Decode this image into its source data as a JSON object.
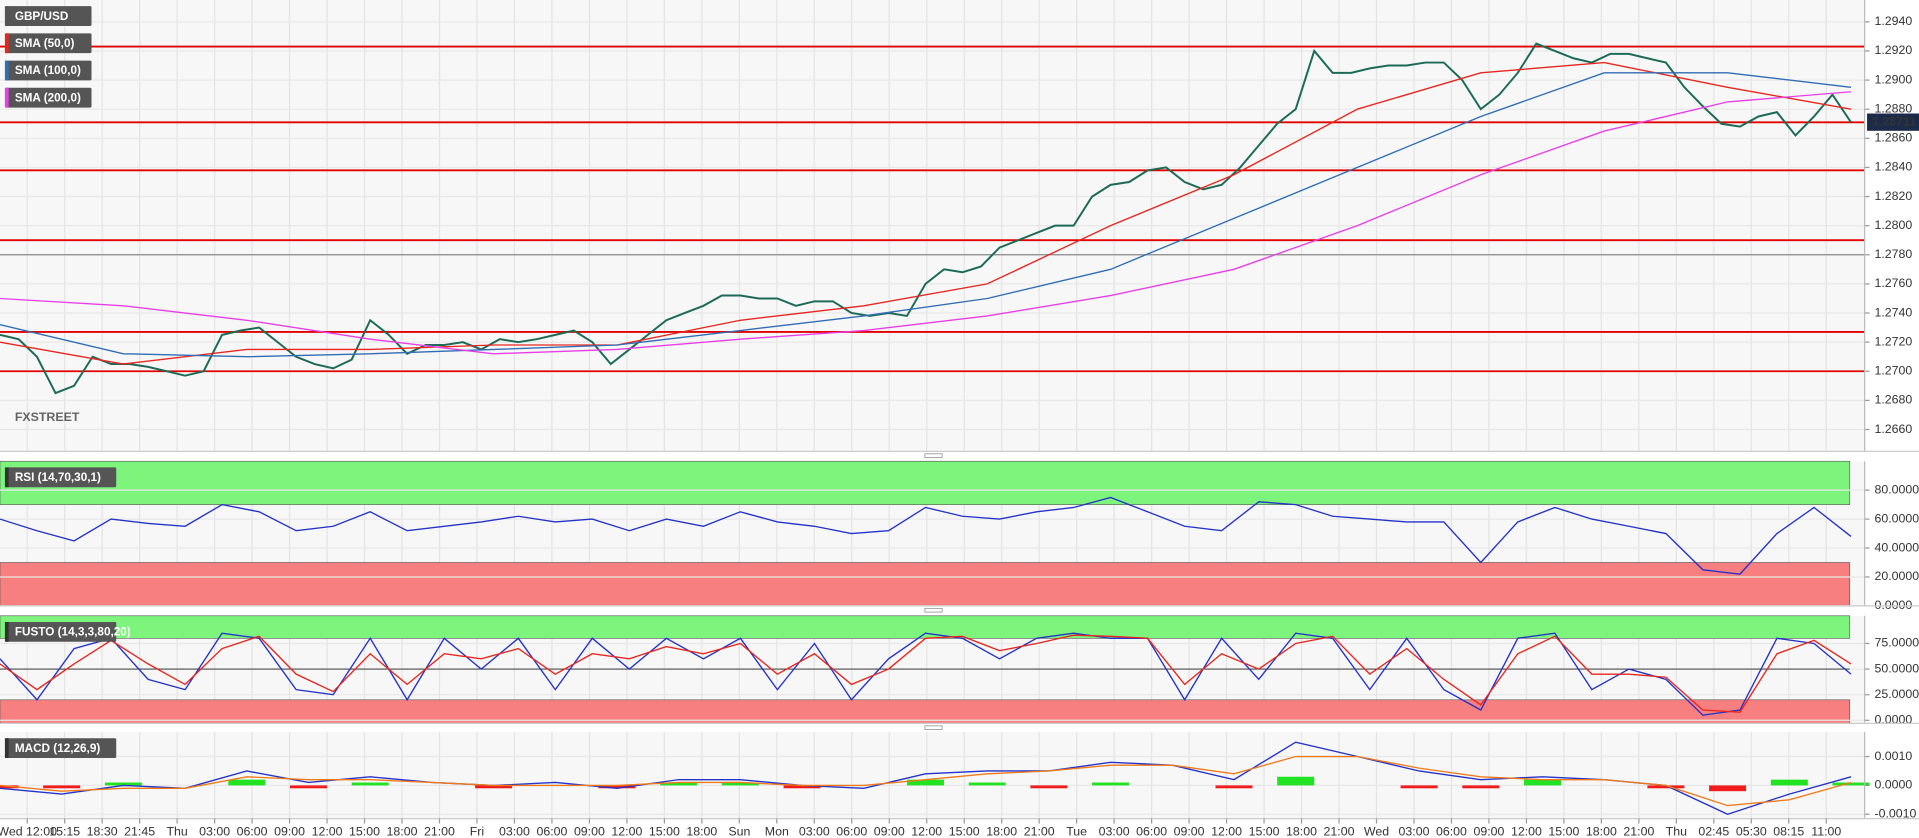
{
  "chart_data": [
    {
      "type": "line",
      "series": [
        {
          "name": "GBP/USD",
          "color": "#1d6b57",
          "values": [
            1.2725,
            1.2722,
            1.271,
            1.2685,
            1.269,
            1.271,
            1.2705,
            1.2705,
            1.2703,
            1.27,
            1.2697,
            1.27,
            1.2725,
            1.2728,
            1.273,
            1.272,
            1.271,
            1.2705,
            1.2702,
            1.2708,
            1.2735,
            1.2725,
            1.2712,
            1.2718,
            1.2718,
            1.272,
            1.2715,
            1.2722,
            1.272,
            1.2722,
            1.2725,
            1.2728,
            1.272,
            1.2705,
            1.2715,
            1.2725,
            1.2735,
            1.274,
            1.2745,
            1.2752,
            1.2752,
            1.275,
            1.275,
            1.2745,
            1.2748,
            1.2748,
            1.274,
            1.2738,
            1.274,
            1.2738,
            1.276,
            1.277,
            1.2768,
            1.2772,
            1.2785,
            1.279,
            1.2795,
            1.28,
            1.28,
            1.282,
            1.2828,
            1.283,
            1.2838,
            1.284,
            1.283,
            1.2825,
            1.2828,
            1.284,
            1.2855,
            1.287,
            1.288,
            1.292,
            1.2905,
            1.2905,
            1.2908,
            1.291,
            1.291,
            1.2912,
            1.2912,
            1.29,
            1.288,
            1.289,
            1.2905,
            1.2925,
            1.292,
            1.2915,
            1.2912,
            1.2918,
            1.2918,
            1.2915,
            1.2912,
            1.2895,
            1.2882,
            1.287,
            1.2868,
            1.2875,
            1.2878,
            1.2862,
            1.2875,
            1.289,
            1.2871
          ]
        },
        {
          "name": "SMA (50,0)",
          "color": "#e8261e",
          "values": [
            1.272,
            1.2705,
            1.2715,
            1.2715,
            1.2718,
            1.2718,
            1.2735,
            1.2745,
            1.276,
            1.28,
            1.2835,
            1.288,
            1.2905,
            1.2912,
            1.2895,
            1.288
          ]
        },
        {
          "name": "SMA (100,0)",
          "color": "#2f6db5",
          "values": [
            1.2732,
            1.2712,
            1.271,
            1.2712,
            1.2715,
            1.2718,
            1.2728,
            1.2738,
            1.275,
            1.277,
            1.2805,
            1.284,
            1.2875,
            1.2905,
            1.2905,
            1.2895
          ]
        },
        {
          "name": "SMA (200,0)",
          "color": "#e83ee8",
          "values": [
            1.275,
            1.2745,
            1.2735,
            1.2722,
            1.2712,
            1.2715,
            1.2722,
            1.2728,
            1.2738,
            1.2752,
            1.277,
            1.28,
            1.2835,
            1.2865,
            1.2885,
            1.2892
          ]
        }
      ],
      "ylim": [
        1.2645,
        1.2955
      ],
      "yticks": [
        {
          "value": 1.266,
          "label": "1.2660"
        },
        {
          "value": 1.268,
          "label": "1.2680"
        },
        {
          "value": 1.27,
          "label": "1.2700"
        },
        {
          "value": 1.272,
          "label": "1.2720"
        },
        {
          "value": 1.274,
          "label": "1.2740"
        },
        {
          "value": 1.276,
          "label": "1.2760"
        },
        {
          "value": 1.278,
          "label": "1.2780"
        },
        {
          "value": 1.28,
          "label": "1.2800"
        },
        {
          "value": 1.282,
          "label": "1.2820"
        },
        {
          "value": 1.284,
          "label": "1.2840"
        },
        {
          "value": 1.286,
          "label": "1.2860"
        },
        {
          "value": 1.288,
          "label": "1.2880"
        },
        {
          "value": 1.29,
          "label": "1.2900"
        },
        {
          "value": 1.292,
          "label": "1.2920"
        },
        {
          "value": 1.294,
          "label": "1.2940"
        }
      ],
      "levels": {
        "color": "#e00000",
        "values": [
          1.2923,
          1.2871,
          1.2838,
          1.279,
          1.2727,
          1.27
        ]
      },
      "reference_line": {
        "value": 1.278,
        "color": "#8a8a8a"
      },
      "last_price": 1.28711,
      "watermark": "FXSTREET"
    },
    {
      "type": "line",
      "title": "RSI (14,70,30,1)",
      "series": [
        {
          "color": "#2433c8",
          "values": [
            60,
            52,
            45,
            60,
            57,
            55,
            70,
            65,
            52,
            55,
            65,
            52,
            55,
            58,
            62,
            58,
            60,
            52,
            60,
            55,
            65,
            58,
            55,
            50,
            52,
            68,
            62,
            60,
            65,
            68,
            75,
            65,
            55,
            52,
            72,
            70,
            62,
            60,
            58,
            58,
            30,
            58,
            68,
            60,
            55,
            50,
            25,
            22,
            50,
            68,
            48
          ]
        }
      ],
      "ylim": [
        0,
        100
      ],
      "yticks": [
        {
          "value": 0,
          "label": "0.0000"
        },
        {
          "value": 20,
          "label": "20.0000"
        },
        {
          "value": 40,
          "label": "40.0000"
        },
        {
          "value": 60,
          "label": "60.0000"
        },
        {
          "value": 80,
          "label": "80.0000"
        }
      ],
      "zones": [
        {
          "from": 70,
          "to": 100,
          "color": "#7df57d"
        },
        {
          "from": 0,
          "to": 30,
          "color": "#f87f7f"
        }
      ]
    },
    {
      "type": "line",
      "title": "FUSTO (14,3,3,80,20)",
      "series": [
        {
          "color": "#2433c8",
          "values": [
            60,
            20,
            70,
            80,
            40,
            30,
            85,
            80,
            30,
            25,
            80,
            20,
            80,
            50,
            80,
            30,
            80,
            50,
            80,
            60,
            80,
            30,
            75,
            20,
            60,
            85,
            80,
            60,
            80,
            85,
            80,
            80,
            20,
            80,
            40,
            85,
            80,
            30,
            80,
            30,
            10,
            80,
            85,
            30,
            50,
            40,
            5,
            10,
            80,
            75,
            45
          ]
        },
        {
          "color": "#e8261e",
          "values": [
            55,
            30,
            55,
            78,
            55,
            35,
            70,
            82,
            45,
            28,
            65,
            35,
            65,
            60,
            70,
            45,
            65,
            60,
            72,
            65,
            75,
            45,
            65,
            35,
            50,
            80,
            82,
            68,
            75,
            83,
            82,
            80,
            35,
            65,
            50,
            75,
            82,
            45,
            70,
            40,
            15,
            65,
            82,
            45,
            45,
            42,
            10,
            8,
            65,
            78,
            55
          ]
        }
      ],
      "ylim": [
        -3,
        102
      ],
      "yticks": [
        {
          "value": 0,
          "label": "0.0000"
        },
        {
          "value": 25,
          "label": "25.0000"
        },
        {
          "value": 50,
          "label": "50.0000"
        },
        {
          "value": 75,
          "label": "75.0000"
        }
      ],
      "zones": [
        {
          "from": 80,
          "to": 102,
          "color": "#7df57d"
        },
        {
          "from": -3,
          "to": 20,
          "color": "#f87f7f"
        }
      ],
      "midline": 50
    },
    {
      "type": "line",
      "title": "MACD (12,26,9)",
      "series": [
        {
          "type": "bar",
          "positive_color": "#22e322",
          "negative_color": "#f01c1c",
          "values": [
            -0.0001,
            -0.0001,
            0.0001,
            0,
            0.0002,
            -0.0001,
            0.0001,
            0,
            -0.0001,
            0,
            -0.0001,
            0.0001,
            0.0001,
            -0.0001,
            0,
            0.0002,
            0.0001,
            -0.0001,
            0.0001,
            0,
            -0.0001,
            0.0003,
            0,
            -0.0001,
            -0.0001,
            0.0002,
            0,
            -0.0001,
            -0.0002,
            0.0002,
            0.0001
          ]
        },
        {
          "color": "#2433c8",
          "values": [
            -0.0001,
            -0.0003,
            0,
            -0.0001,
            0.0005,
            0.0001,
            0.0003,
            0.0001,
            0,
            0.0001,
            -0.0001,
            0.0002,
            0.0002,
            0,
            -0.0001,
            0.0004,
            0.0005,
            0.0005,
            0.0008,
            0.0007,
            0.0002,
            0.0015,
            0.001,
            0.0005,
            0.0002,
            0.0003,
            0.0002,
            0,
            -0.001,
            -0.0003,
            0.0003
          ]
        },
        {
          "color": "#f07a1a",
          "values": [
            0,
            -0.0002,
            -0.0001,
            -0.0001,
            0.0003,
            0.0002,
            0.0002,
            0.0001,
            0,
            0,
            0,
            0.0001,
            0.0001,
            0,
            0,
            0.0002,
            0.0004,
            0.0005,
            0.0007,
            0.0007,
            0.0004,
            0.001,
            0.001,
            0.0006,
            0.0003,
            0.0002,
            0.0002,
            0,
            -0.0007,
            -0.0005,
            0.0001
          ]
        }
      ],
      "ylim": [
        -0.00115,
        0.00185
      ],
      "yticks": [
        {
          "value": -0.001,
          "label": "-0.0010"
        },
        {
          "value": 0,
          "label": "0.0000"
        },
        {
          "value": 0.001,
          "label": "0.0010"
        }
      ]
    }
  ],
  "time_axis": {
    "labels": [
      "Wed 12:00",
      "15:15",
      "18:30",
      "21:45",
      "Thu",
      "03:00",
      "06:00",
      "09:00",
      "12:00",
      "15:00",
      "18:00",
      "21:00",
      "Fri",
      "03:00",
      "06:00",
      "09:00",
      "12:00",
      "15:00",
      "18:00",
      "Sun",
      "Mon",
      "03:00",
      "06:00",
      "09:00",
      "12:00",
      "15:00",
      "18:00",
      "21:00",
      "Tue",
      "03:00",
      "06:00",
      "09:00",
      "12:00",
      "15:00",
      "18:00",
      "21:00",
      "Wed",
      "03:00",
      "06:00",
      "09:00",
      "12:00",
      "15:00",
      "18:00",
      "21:00",
      "Thu",
      "02:45",
      "05:30",
      "08:15",
      "11:00"
    ]
  }
}
